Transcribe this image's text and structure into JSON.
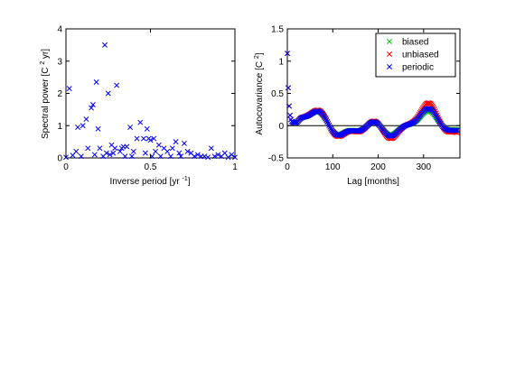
{
  "chart_data": [
    {
      "type": "scatter",
      "xlim": [
        0,
        1
      ],
      "ylim": [
        0,
        4
      ],
      "xticks": [
        "0",
        "0.5",
        "1"
      ],
      "yticks": [
        "0",
        "1",
        "2",
        "3",
        "4"
      ],
      "xlabel": "Inverse period [yr ",
      "xlabel_sup": "-1",
      "xlabel_end": "]",
      "ylabel": "Spectral power [C ",
      "ylabel_sup": "2",
      "ylabel_end": " yr]",
      "grid": false,
      "series": [
        {
          "color": "#0000ff",
          "marker": "x",
          "x": [
            0.0,
            0.02,
            0.04,
            0.06,
            0.07,
            0.09,
            0.1,
            0.12,
            0.13,
            0.15,
            0.16,
            0.17,
            0.18,
            0.19,
            0.2,
            0.22,
            0.23,
            0.24,
            0.25,
            0.26,
            0.27,
            0.28,
            0.29,
            0.3,
            0.32,
            0.33,
            0.34,
            0.35,
            0.36,
            0.38,
            0.39,
            0.4,
            0.42,
            0.44,
            0.46,
            0.47,
            0.48,
            0.49,
            0.5,
            0.51,
            0.52,
            0.53,
            0.55,
            0.56,
            0.58,
            0.6,
            0.62,
            0.63,
            0.65,
            0.67,
            0.68,
            0.7,
            0.72,
            0.74,
            0.76,
            0.78,
            0.8,
            0.82,
            0.84,
            0.86,
            0.88,
            0.9,
            0.92,
            0.94,
            0.96,
            0.98,
            1.0
          ],
          "y": [
            0.02,
            2.15,
            0.08,
            0.2,
            0.95,
            0.05,
            1.0,
            1.2,
            0.3,
            1.55,
            1.65,
            0.1,
            2.35,
            0.9,
            0.3,
            0.05,
            3.5,
            0.15,
            2.0,
            0.1,
            0.4,
            0.15,
            0.3,
            2.25,
            0.2,
            0.3,
            0.35,
            0.05,
            0.35,
            0.95,
            0.05,
            0.2,
            0.6,
            1.1,
            0.6,
            0.15,
            0.9,
            0.6,
            0.55,
            0.05,
            0.6,
            0.2,
            0.4,
            0.05,
            0.3,
            0.2,
            0.05,
            0.3,
            0.5,
            0.15,
            0.05,
            0.45,
            0.2,
            0.15,
            0.05,
            0.1,
            0.05,
            0.05,
            0.02,
            0.3,
            0.05,
            0.1,
            0.05,
            0.15,
            0.02,
            0.1,
            0.02
          ]
        }
      ]
    },
    {
      "type": "scatter",
      "xlim": [
        0,
        380
      ],
      "ylim": [
        -0.5,
        1.5
      ],
      "xticks": [
        "0",
        "100",
        "200",
        "300"
      ],
      "yticks": [
        "-0.5",
        "0",
        "0.5",
        "1",
        "1.5"
      ],
      "xlabel": "Lag [months]",
      "ylabel": "Autocovariance [C ",
      "ylabel_sup": "2",
      "ylabel_end": "]",
      "grid": false,
      "zero_line": true,
      "legend": {
        "placement": "top-right"
      },
      "series": [
        {
          "name": "biased",
          "color": "#00cc00",
          "marker": "x",
          "amp": 0.9
        },
        {
          "name": "unbiased",
          "color": "#ff0000",
          "marker": "x",
          "amp": 1.25
        },
        {
          "name": "periodic",
          "color": "#0000ff",
          "marker": "x",
          "amp": 1.0
        }
      ],
      "lag_step": 2,
      "lag_max": 375
    }
  ]
}
